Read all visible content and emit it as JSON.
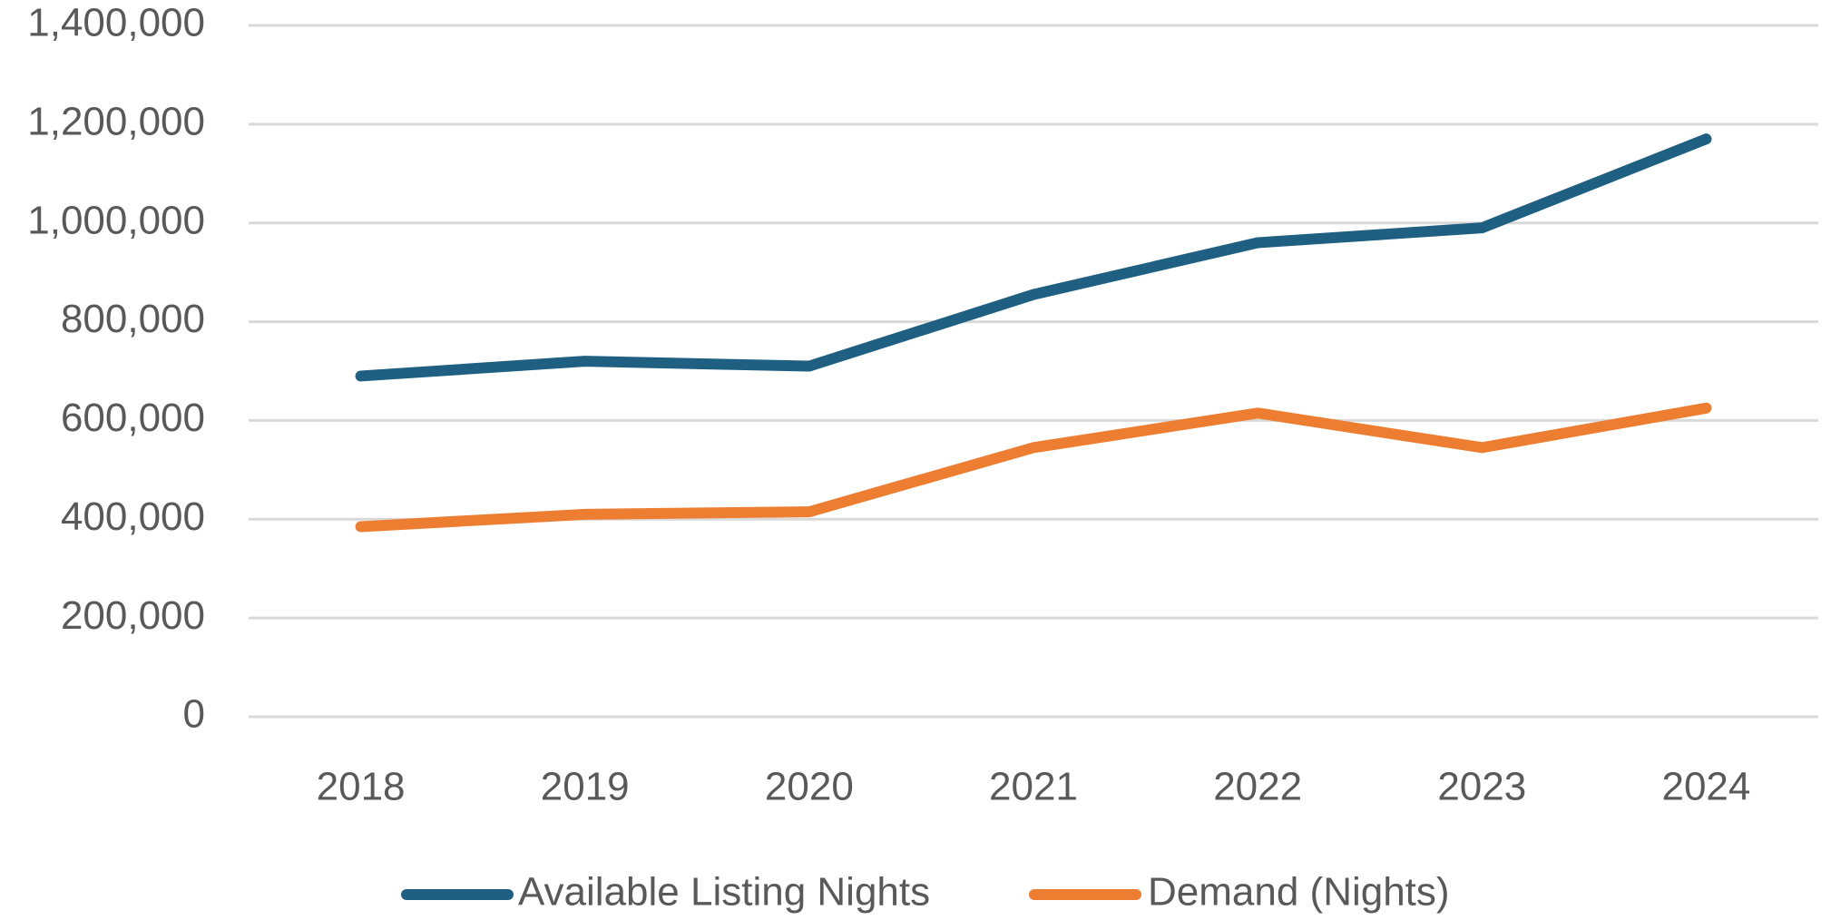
{
  "chart_data": {
    "type": "line",
    "categories": [
      "2018",
      "2019",
      "2020",
      "2021",
      "2022",
      "2023",
      "2024"
    ],
    "series": [
      {
        "name": "Available Listing Nights",
        "color": "#1f5f82",
        "values": [
          690000,
          720000,
          710000,
          855000,
          960000,
          990000,
          1170000
        ]
      },
      {
        "name": "Demand (Nights)",
        "color": "#ed7d31",
        "values": [
          385000,
          410000,
          415000,
          545000,
          615000,
          545000,
          625000
        ]
      }
    ],
    "ylim": [
      0,
      1400000
    ],
    "yticks": [
      0,
      {
        "value": 200000,
        "label": "200,000"
      },
      {
        "value": 400000,
        "label": "400,000"
      },
      {
        "value": 600000,
        "label": "600,000"
      },
      {
        "value": 800000,
        "label": "800,000"
      },
      {
        "value": 1000000,
        "label": "1,000,000"
      },
      {
        "value": 1200000,
        "label": "1,200,000"
      },
      {
        "value": 1400000,
        "label": "1,400,000"
      }
    ],
    "grid": true,
    "legend": "bottom"
  }
}
